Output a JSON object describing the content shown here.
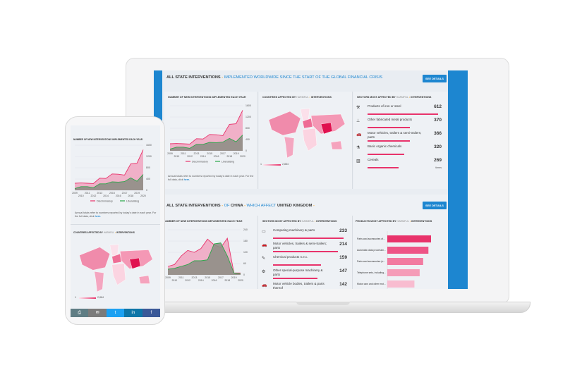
{
  "colors": {
    "accent": "#1d86d0",
    "discriminatory": "#e8336b",
    "liberalising": "#2aa84a",
    "highlight": "#f5a623"
  },
  "panel1": {
    "title": "ALL STATE INTERVENTIONS",
    "sep": " - ",
    "subtitle": "IMPLEMENTED WORLDWIDE SINCE THE START OF THE GLOBAL FINANCIAL CRISIS",
    "button": "SEE DETAILS",
    "chart_title": "NUMBER OF NEW INTERVENTIONS IMPLEMENTED EACH YEAR",
    "note": "Annual totals refer to numbers reported by today's date in each year. For the full data, click ",
    "note_link": "here.",
    "map_title": "COUNTRIES AFFECTED BY",
    "map_harmful": "HARMFUL",
    "map_interventions": "INTERVENTIONS",
    "map_min": "1",
    "map_max": "2,884",
    "sectors_title": "SECTORS MOST AFFECTED BY",
    "sectors_harmful": "HARMFUL",
    "sectors_interventions": "INTERVENTIONS",
    "sectors": [
      {
        "label": "Products of iron or steel",
        "value": "612",
        "icon": "anvil-icon",
        "frac": 1.0
      },
      {
        "label": "Other fabricated metal products",
        "value": "370",
        "icon": "bolt-icon",
        "frac": 0.6
      },
      {
        "label": "Motor vehicles, trailers & semi-trailers; parts",
        "value": "366",
        "icon": "car-icon",
        "frac": 0.6
      },
      {
        "label": "Basic organic chemicals",
        "value": "320",
        "icon": "flask-icon",
        "frac": 0.52
      },
      {
        "label": "Cereals",
        "value": "269",
        "icon": "wheat-icon",
        "frac": 0.44
      }
    ],
    "times": "times"
  },
  "panel2": {
    "title": "ALL STATE INTERVENTIONS",
    "of": "OF",
    "country": "CHINA",
    "which": "WHICH AFFECT",
    "target": "UNITED KINGDOM",
    "button": "SEE DETAILS",
    "chart_title": "NUMBER OF NEW INTERVENTIONS IMPLEMENTED EACH YEAR",
    "sectors_title": "SECTORS MOST AFFECTED BY",
    "sectors_harmful": "HARMFUL",
    "sectors_interventions": "INTERVENTIONS",
    "sectors": [
      {
        "label": "Computing machinery & parts",
        "value": "233",
        "icon": "computer-icon",
        "frac": 1.0
      },
      {
        "label": "Motor vehicles, trailers & semi-trailers; parts",
        "value": "214",
        "icon": "car-icon",
        "frac": 0.92
      },
      {
        "label": "Chemical products n.e.c.",
        "value": "159",
        "icon": "chemical-icon",
        "frac": 0.68
      },
      {
        "label": "Other special-purpose machinery & parts",
        "value": "147",
        "icon": "gear-icon",
        "frac": 0.63
      },
      {
        "label": "Motor vehicle bodies, trailers & parts thereof",
        "value": "142",
        "icon": "car-icon",
        "frac": 0.6
      }
    ],
    "products_title": "PRODUCTS MOST AFFECTED BY",
    "products_harmful": "HARMFUL",
    "products_interventions": "INTERVENTIONS"
  },
  "phone": {
    "chart_title": "NUMBER OF NEW INTERVENTIONS IMPLEMENTED EACH YEAR",
    "note": "Annual totals refer to numbers reported by today's date in each year. For the full data, click ",
    "note_link": "here.",
    "map_title": "COUNTRIES AFFECTED BY",
    "map_harmful": "HARMFUL",
    "map_interventions": "INTERVENTIONS",
    "map_min": "1",
    "map_max": "2,884",
    "share": [
      {
        "icon": "print-icon",
        "color": "#5f7d84",
        "glyph": "⎙"
      },
      {
        "icon": "mail-icon",
        "color": "#7b7b7b",
        "glyph": "✉"
      },
      {
        "icon": "twitter-icon",
        "color": "#1da1f2",
        "glyph": "t"
      },
      {
        "icon": "linkedin-icon",
        "color": "#0e76a8",
        "glyph": "in"
      },
      {
        "icon": "facebook-icon",
        "color": "#3b5998",
        "glyph": "f"
      }
    ]
  },
  "chart_data": [
    {
      "type": "area",
      "x": [
        2009,
        2010,
        2011,
        2012,
        2013,
        2014,
        2015,
        2016,
        2017,
        2018,
        2019,
        2020
      ],
      "ylim": [
        0,
        1600
      ],
      "yticks": [
        0,
        400,
        800,
        1200,
        1600
      ],
      "series": [
        {
          "name": "Discriminatory",
          "values": [
            250,
            260,
            250,
            240,
            430,
            420,
            580,
            570,
            540,
            940,
            960,
            1440
          ]
        },
        {
          "name": "Liberalising",
          "values": [
            60,
            130,
            130,
            90,
            230,
            230,
            300,
            290,
            310,
            440,
            320,
            560
          ]
        }
      ]
    },
    {
      "type": "area",
      "x": [
        2009,
        2010,
        2011,
        2012,
        2013,
        2014,
        2015,
        2016,
        2017,
        2018,
        2019,
        2020
      ],
      "ylim": [
        0,
        240
      ],
      "yticks": [
        0,
        60,
        120,
        180,
        240
      ],
      "series": [
        {
          "name": "Discriminatory",
          "values": [
            45,
            55,
            100,
            130,
            120,
            140,
            190,
            160,
            145,
            195,
            10,
            10
          ]
        },
        {
          "name": "Liberalising",
          "values": [
            30,
            35,
            45,
            55,
            75,
            75,
            80,
            165,
            170,
            100,
            10,
            5
          ]
        }
      ]
    },
    {
      "type": "bar",
      "orientation": "horizontal",
      "categories": [
        "Parts and accessories of...",
        "Automatic data processin...",
        "Parts and accessories (o...",
        "Telephone sets, including...",
        "Motor cars and other mot..."
      ],
      "values": [
        100,
        94,
        82,
        74,
        62
      ]
    }
  ]
}
